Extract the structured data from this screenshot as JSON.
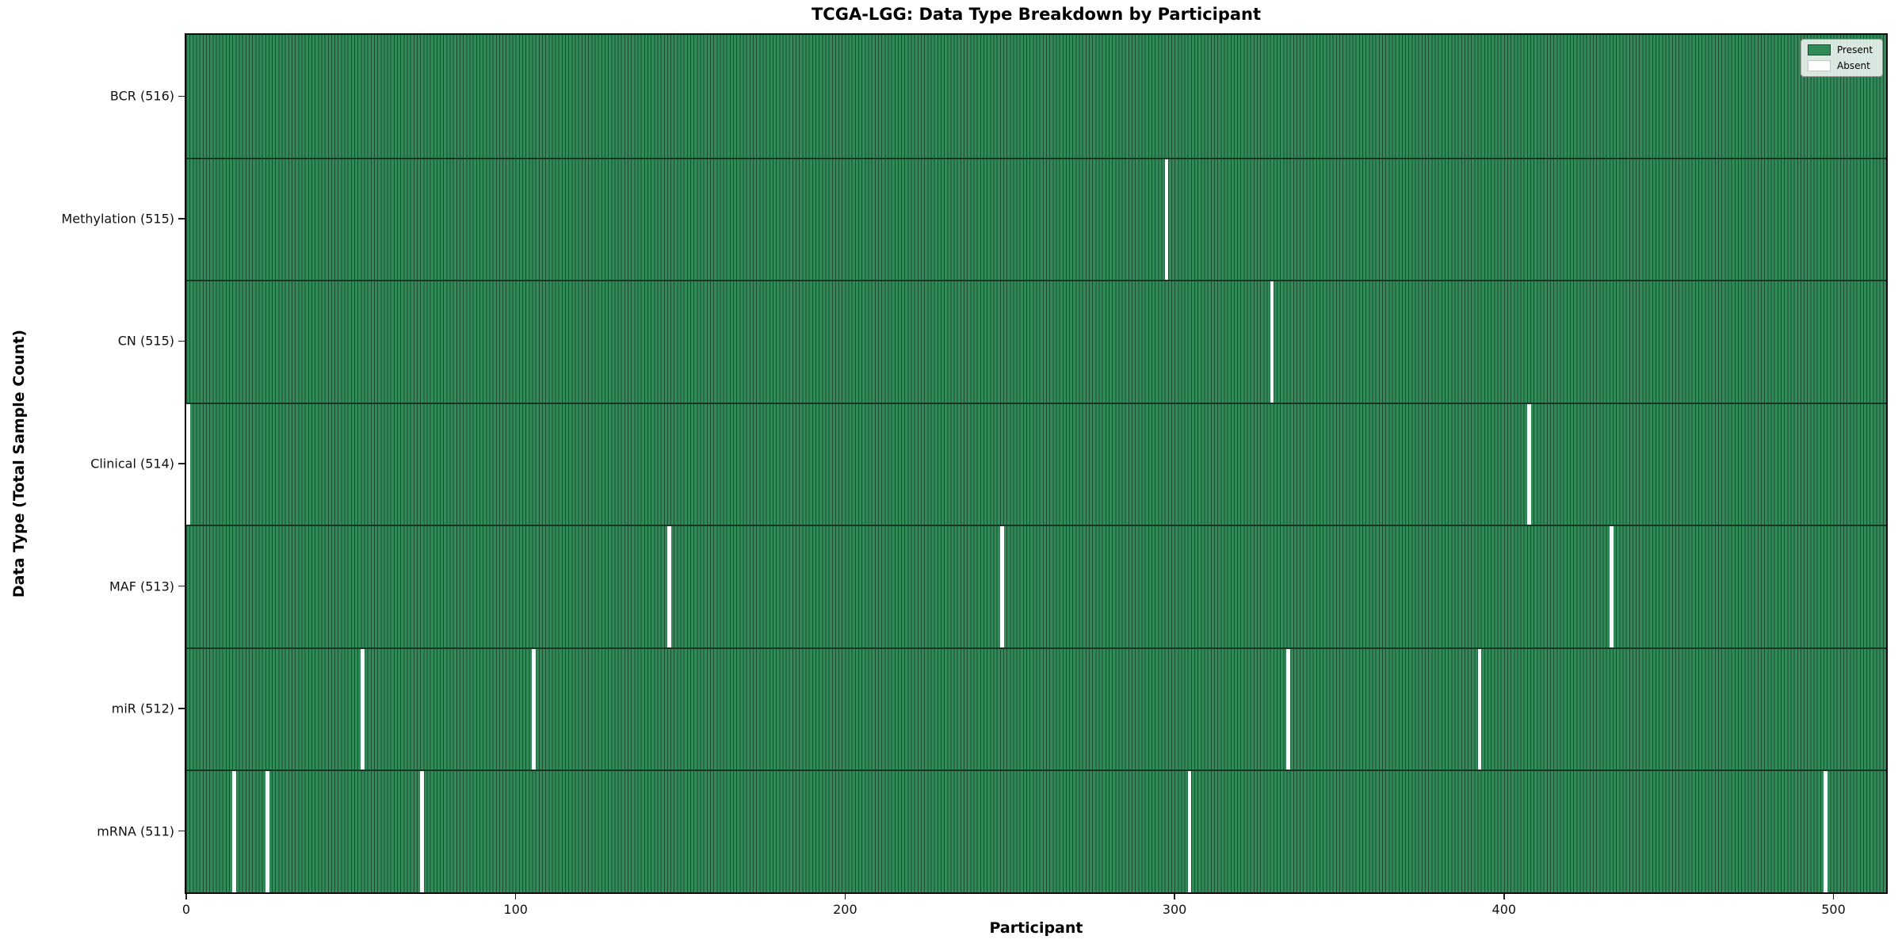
{
  "chart_data": {
    "type": "heatmap",
    "title": "TCGA-LGG: Data Type Breakdown by Participant",
    "xlabel": "Participant",
    "ylabel": "Data Type (Total Sample Count)",
    "x_ticks": [
      0,
      100,
      200,
      300,
      400,
      500
    ],
    "x_range": [
      0,
      516
    ],
    "n_participants": 516,
    "grid": false,
    "legend": {
      "position": "upper right",
      "entries": [
        {
          "label": "Present",
          "color": "#2e8b57"
        },
        {
          "label": "Absent",
          "color": "#ffffff"
        }
      ]
    },
    "colors": {
      "present": "#2e8b57",
      "bar_edge": "#1c4e32",
      "absent": "#ffffff",
      "background": "#ffffff"
    },
    "rows": [
      {
        "data_type": "BCR",
        "label": "BCR (516)",
        "total": 516,
        "absent_participants": []
      },
      {
        "data_type": "Methylation",
        "label": "Methylation (515)",
        "total": 515,
        "absent_participants": [
          297
        ]
      },
      {
        "data_type": "CN",
        "label": "CN (515)",
        "total": 515,
        "absent_participants": [
          329
        ]
      },
      {
        "data_type": "Clinical",
        "label": "Clinical (514)",
        "total": 514,
        "absent_participants": [
          0,
          407
        ]
      },
      {
        "data_type": "MAF",
        "label": "MAF (513)",
        "total": 513,
        "absent_participants": [
          146,
          247,
          432
        ]
      },
      {
        "data_type": "miR",
        "label": "miR (512)",
        "total": 512,
        "absent_participants": [
          53,
          105,
          334,
          392
        ]
      },
      {
        "data_type": "mRNA",
        "label": "mRNA (511)",
        "total": 511,
        "absent_participants": [
          14,
          24,
          71,
          304,
          497
        ]
      }
    ]
  }
}
